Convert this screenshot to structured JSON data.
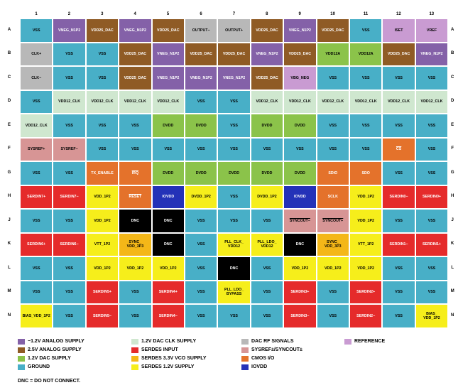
{
  "colors": {
    "neg12": "#8461a8",
    "a25": "#8f5b25",
    "d12": "#8bc34a",
    "gnd": "#48afc7",
    "clk12": "#cfe7cf",
    "sin": "#e52b2b",
    "s33": "#f4b718",
    "s12": "#f6ee1b",
    "dac": "#b8b8b8",
    "sysref": "#d79595",
    "cmos": "#e4722b",
    "iovdd": "#2432b8",
    "ref": "#c99bd2",
    "dnc": "#000000"
  },
  "column_labels": [
    "1",
    "2",
    "3",
    "4",
    "5",
    "6",
    "7",
    "8",
    "9",
    "10",
    "11",
    "12",
    "13"
  ],
  "row_labels": [
    "A",
    "B",
    "C",
    "D",
    "E",
    "F",
    "G",
    "H",
    "J",
    "K",
    "L",
    "M",
    "N"
  ],
  "pins": [
    [
      [
        "VSS",
        "gnd"
      ],
      [
        "VNEG_N1P2",
        "neg12"
      ],
      [
        "VDD25_DAC",
        "a25"
      ],
      [
        "VNEG_N1P2",
        "neg12"
      ],
      [
        "VDD25_DAC",
        "a25"
      ],
      [
        "OUTPUT−",
        "dac"
      ],
      [
        "OUTPUT+",
        "dac"
      ],
      [
        "VDD25_DAC",
        "a25"
      ],
      [
        "VNEG_N1P2",
        "neg12"
      ],
      [
        "VDD25_DAC",
        "a25"
      ],
      [
        "VSS",
        "gnd"
      ],
      [
        "ISET",
        "ref"
      ],
      [
        "VREF",
        "ref"
      ]
    ],
    [
      [
        "CLK+",
        "dac"
      ],
      [
        "VSS",
        "gnd"
      ],
      [
        "VSS",
        "gnd"
      ],
      [
        "VDD25_DAC",
        "a25"
      ],
      [
        "VNEG_N1P2",
        "neg12"
      ],
      [
        "VDD25_DAC",
        "a25"
      ],
      [
        "VDD25_DAC",
        "a25"
      ],
      [
        "VNEG_N1P2",
        "neg12"
      ],
      [
        "VDD25_DAC",
        "a25"
      ],
      [
        "VDD12A",
        "d12"
      ],
      [
        "VDD12A",
        "d12"
      ],
      [
        "VDD25_DAC",
        "a25"
      ],
      [
        "VNEG_N1P2",
        "neg12"
      ]
    ],
    [
      [
        "CLK−",
        "dac"
      ],
      [
        "VSS",
        "gnd"
      ],
      [
        "VSS",
        "gnd"
      ],
      [
        "VDD25_DAC",
        "a25"
      ],
      [
        "VNEG_N1P2",
        "neg12"
      ],
      [
        "VNEG_N1P2",
        "neg12"
      ],
      [
        "VNEG_N1P2",
        "neg12"
      ],
      [
        "VDD25_DAC",
        "a25"
      ],
      [
        "VBG_NEG",
        "ref"
      ],
      [
        "VSS",
        "gnd"
      ],
      [
        "VSS",
        "gnd"
      ],
      [
        "VSS",
        "gnd"
      ],
      [
        "VSS",
        "gnd"
      ]
    ],
    [
      [
        "VSS",
        "gnd"
      ],
      [
        "VDD12_CLK",
        "clk12"
      ],
      [
        "VDD12_CLK",
        "clk12"
      ],
      [
        "VDD12_CLK",
        "clk12"
      ],
      [
        "VDD12_CLK",
        "clk12"
      ],
      [
        "VSS",
        "gnd"
      ],
      [
        "VSS",
        "gnd"
      ],
      [
        "VDD12_CLK",
        "clk12"
      ],
      [
        "VDD12_CLK",
        "clk12"
      ],
      [
        "VDD12_CLK",
        "clk12"
      ],
      [
        "VDD12_CLK",
        "clk12"
      ],
      [
        "VDD12_CLK",
        "clk12"
      ],
      [
        "VDD12_CLK",
        "clk12"
      ]
    ],
    [
      [
        "VDD12_CLK",
        "clk12"
      ],
      [
        "VSS",
        "gnd"
      ],
      [
        "VSS",
        "gnd"
      ],
      [
        "VSS",
        "gnd"
      ],
      [
        "DVDD",
        "d12"
      ],
      [
        "DVDD",
        "d12"
      ],
      [
        "VSS",
        "gnd"
      ],
      [
        "DVDD",
        "d12"
      ],
      [
        "DVDD",
        "d12"
      ],
      [
        "VSS",
        "gnd"
      ],
      [
        "VSS",
        "gnd"
      ],
      [
        "VSS",
        "gnd"
      ],
      [
        "VSS",
        "gnd"
      ]
    ],
    [
      [
        "SYSREF+",
        "sysref"
      ],
      [
        "SYSREF−",
        "sysref"
      ],
      [
        "VSS",
        "gnd"
      ],
      [
        "VSS",
        "gnd"
      ],
      [
        "VSS",
        "gnd"
      ],
      [
        "VSS",
        "gnd"
      ],
      [
        "VSS",
        "gnd"
      ],
      [
        "VSS",
        "gnd"
      ],
      [
        "VSS",
        "gnd"
      ],
      [
        "VSS",
        "gnd"
      ],
      [
        "VSS",
        "gnd"
      ],
      [
        "CS",
        "cmos"
      ],
      [
        "VSS",
        "gnd"
      ]
    ],
    [
      [
        "VSS",
        "gnd"
      ],
      [
        "VSS",
        "gnd"
      ],
      [
        "TX_ENABLE",
        "cmos"
      ],
      [
        "IRQ",
        "cmos"
      ],
      [
        "DVDD",
        "d12"
      ],
      [
        "DVDD",
        "d12"
      ],
      [
        "DVDD",
        "d12"
      ],
      [
        "DVDD",
        "d12"
      ],
      [
        "DVDD",
        "d12"
      ],
      [
        "SDIO",
        "cmos"
      ],
      [
        "SDO",
        "cmos"
      ],
      [
        "VSS",
        "gnd"
      ],
      [
        "VSS",
        "gnd"
      ]
    ],
    [
      [
        "SERDIN7+",
        "sin"
      ],
      [
        "SERDIN7−",
        "sin"
      ],
      [
        "VDD_1P2",
        "s12"
      ],
      [
        "RESET",
        "cmos"
      ],
      [
        "IOVDD",
        "iovdd"
      ],
      [
        "DVDD_1P2",
        "s12"
      ],
      [
        "VSS",
        "gnd"
      ],
      [
        "DVDD_1P2",
        "s12"
      ],
      [
        "IOVDD",
        "iovdd"
      ],
      [
        "SCLK",
        "cmos"
      ],
      [
        "VDD_1P2",
        "s12"
      ],
      [
        "SERDIN0−",
        "sin"
      ],
      [
        "SERDIN0+",
        "sin"
      ]
    ],
    [
      [
        "VSS",
        "gnd"
      ],
      [
        "VSS",
        "gnd"
      ],
      [
        "VDD_1P2",
        "s12"
      ],
      [
        "DNC",
        "dnc"
      ],
      [
        "DNC",
        "dnc"
      ],
      [
        "VSS",
        "gnd"
      ],
      [
        "VSS",
        "gnd"
      ],
      [
        "VSS",
        "gnd"
      ],
      [
        "SYNCOUT−",
        "sysref"
      ],
      [
        "SYNCOUT+",
        "sysref"
      ],
      [
        "VDD_1P2",
        "s12"
      ],
      [
        "VSS",
        "gnd"
      ],
      [
        "VSS",
        "gnd"
      ]
    ],
    [
      [
        "SERDIN6+",
        "sin"
      ],
      [
        "SERDIN6−",
        "sin"
      ],
      [
        "VTT_1P2",
        "s12"
      ],
      [
        "SYNC_\nVDD_3P3",
        "s33"
      ],
      [
        "DNC",
        "dnc"
      ],
      [
        "VSS",
        "gnd"
      ],
      [
        "PLL_CLK_\nVDD12",
        "s12"
      ],
      [
        "PLL_LDO_\nVDD12",
        "s12"
      ],
      [
        "DNC",
        "dnc"
      ],
      [
        "SYNC_\nVDD_3P3",
        "s33"
      ],
      [
        "VTT_1P2",
        "s12"
      ],
      [
        "SERDIN1−",
        "sin"
      ],
      [
        "SERDIN1+",
        "sin"
      ]
    ],
    [
      [
        "VSS",
        "gnd"
      ],
      [
        "VSS",
        "gnd"
      ],
      [
        "VDD_1P2",
        "s12"
      ],
      [
        "VDD_1P2",
        "s12"
      ],
      [
        "VDD_1P2",
        "s12"
      ],
      [
        "VSS",
        "gnd"
      ],
      [
        "DNC",
        "dnc"
      ],
      [
        "VSS",
        "gnd"
      ],
      [
        "VDD_1P2",
        "s12"
      ],
      [
        "VDD_1P2",
        "s12"
      ],
      [
        "VDD_1P2",
        "s12"
      ],
      [
        "VSS",
        "gnd"
      ],
      [
        "VSS",
        "gnd"
      ]
    ],
    [
      [
        "VSS",
        "gnd"
      ],
      [
        "VSS",
        "gnd"
      ],
      [
        "SERDIN5+",
        "sin"
      ],
      [
        "VSS",
        "gnd"
      ],
      [
        "SERDIN4+",
        "sin"
      ],
      [
        "VSS",
        "gnd"
      ],
      [
        "PLL_LDO_\nBYPASS",
        "s12"
      ],
      [
        "VSS",
        "gnd"
      ],
      [
        "SERDIN3+",
        "sin"
      ],
      [
        "VSS",
        "gnd"
      ],
      [
        "SERDIN2+",
        "sin"
      ],
      [
        "VSS",
        "gnd"
      ],
      [
        "VSS",
        "gnd"
      ]
    ],
    [
      [
        "BIAS_VDD_1P2",
        "s12"
      ],
      [
        "VSS",
        "gnd"
      ],
      [
        "SERDIN5−",
        "sin"
      ],
      [
        "VSS",
        "gnd"
      ],
      [
        "SERDIN4−",
        "sin"
      ],
      [
        "VSS",
        "gnd"
      ],
      [
        "VSS",
        "gnd"
      ],
      [
        "VSS",
        "gnd"
      ],
      [
        "SERDIN3−",
        "sin"
      ],
      [
        "VSS",
        "gnd"
      ],
      [
        "SERDIN2−",
        "sin"
      ],
      [
        "VSS",
        "gnd"
      ],
      [
        "BIAS_\nVDD_1P2",
        "s12"
      ]
    ]
  ],
  "legend": [
    {
      "key": "neg12",
      "label": "−1.2V ANALOG SUPPLY"
    },
    {
      "key": "a25",
      "label": "2.5V ANALOG SUPPLY"
    },
    {
      "key": "d12",
      "label": "1.2V DAC SUPPLY"
    },
    {
      "key": "gnd",
      "label": "GROUND"
    },
    {
      "key": "clk12",
      "label": "1.2V DAC CLK SUPPLY"
    },
    {
      "key": "sin",
      "label": "SERDES INPUT"
    },
    {
      "key": "s33",
      "label": "SERDES 3.3V VCO SUPPLY"
    },
    {
      "key": "s12",
      "label": "SERDES 1.2V SUPPLY"
    },
    {
      "key": "dac",
      "label": "DAC RF SIGNALS"
    },
    {
      "key": "sysref",
      "label": "SYSREF±/SYNCOUT±"
    },
    {
      "key": "cmos",
      "label": "CMOS I/O"
    },
    {
      "key": "iovdd",
      "label": "IOVDD"
    },
    {
      "key": "ref",
      "label": "REFERENCE"
    }
  ],
  "dnc_note": "DNC = DO NOT CONNECT."
}
